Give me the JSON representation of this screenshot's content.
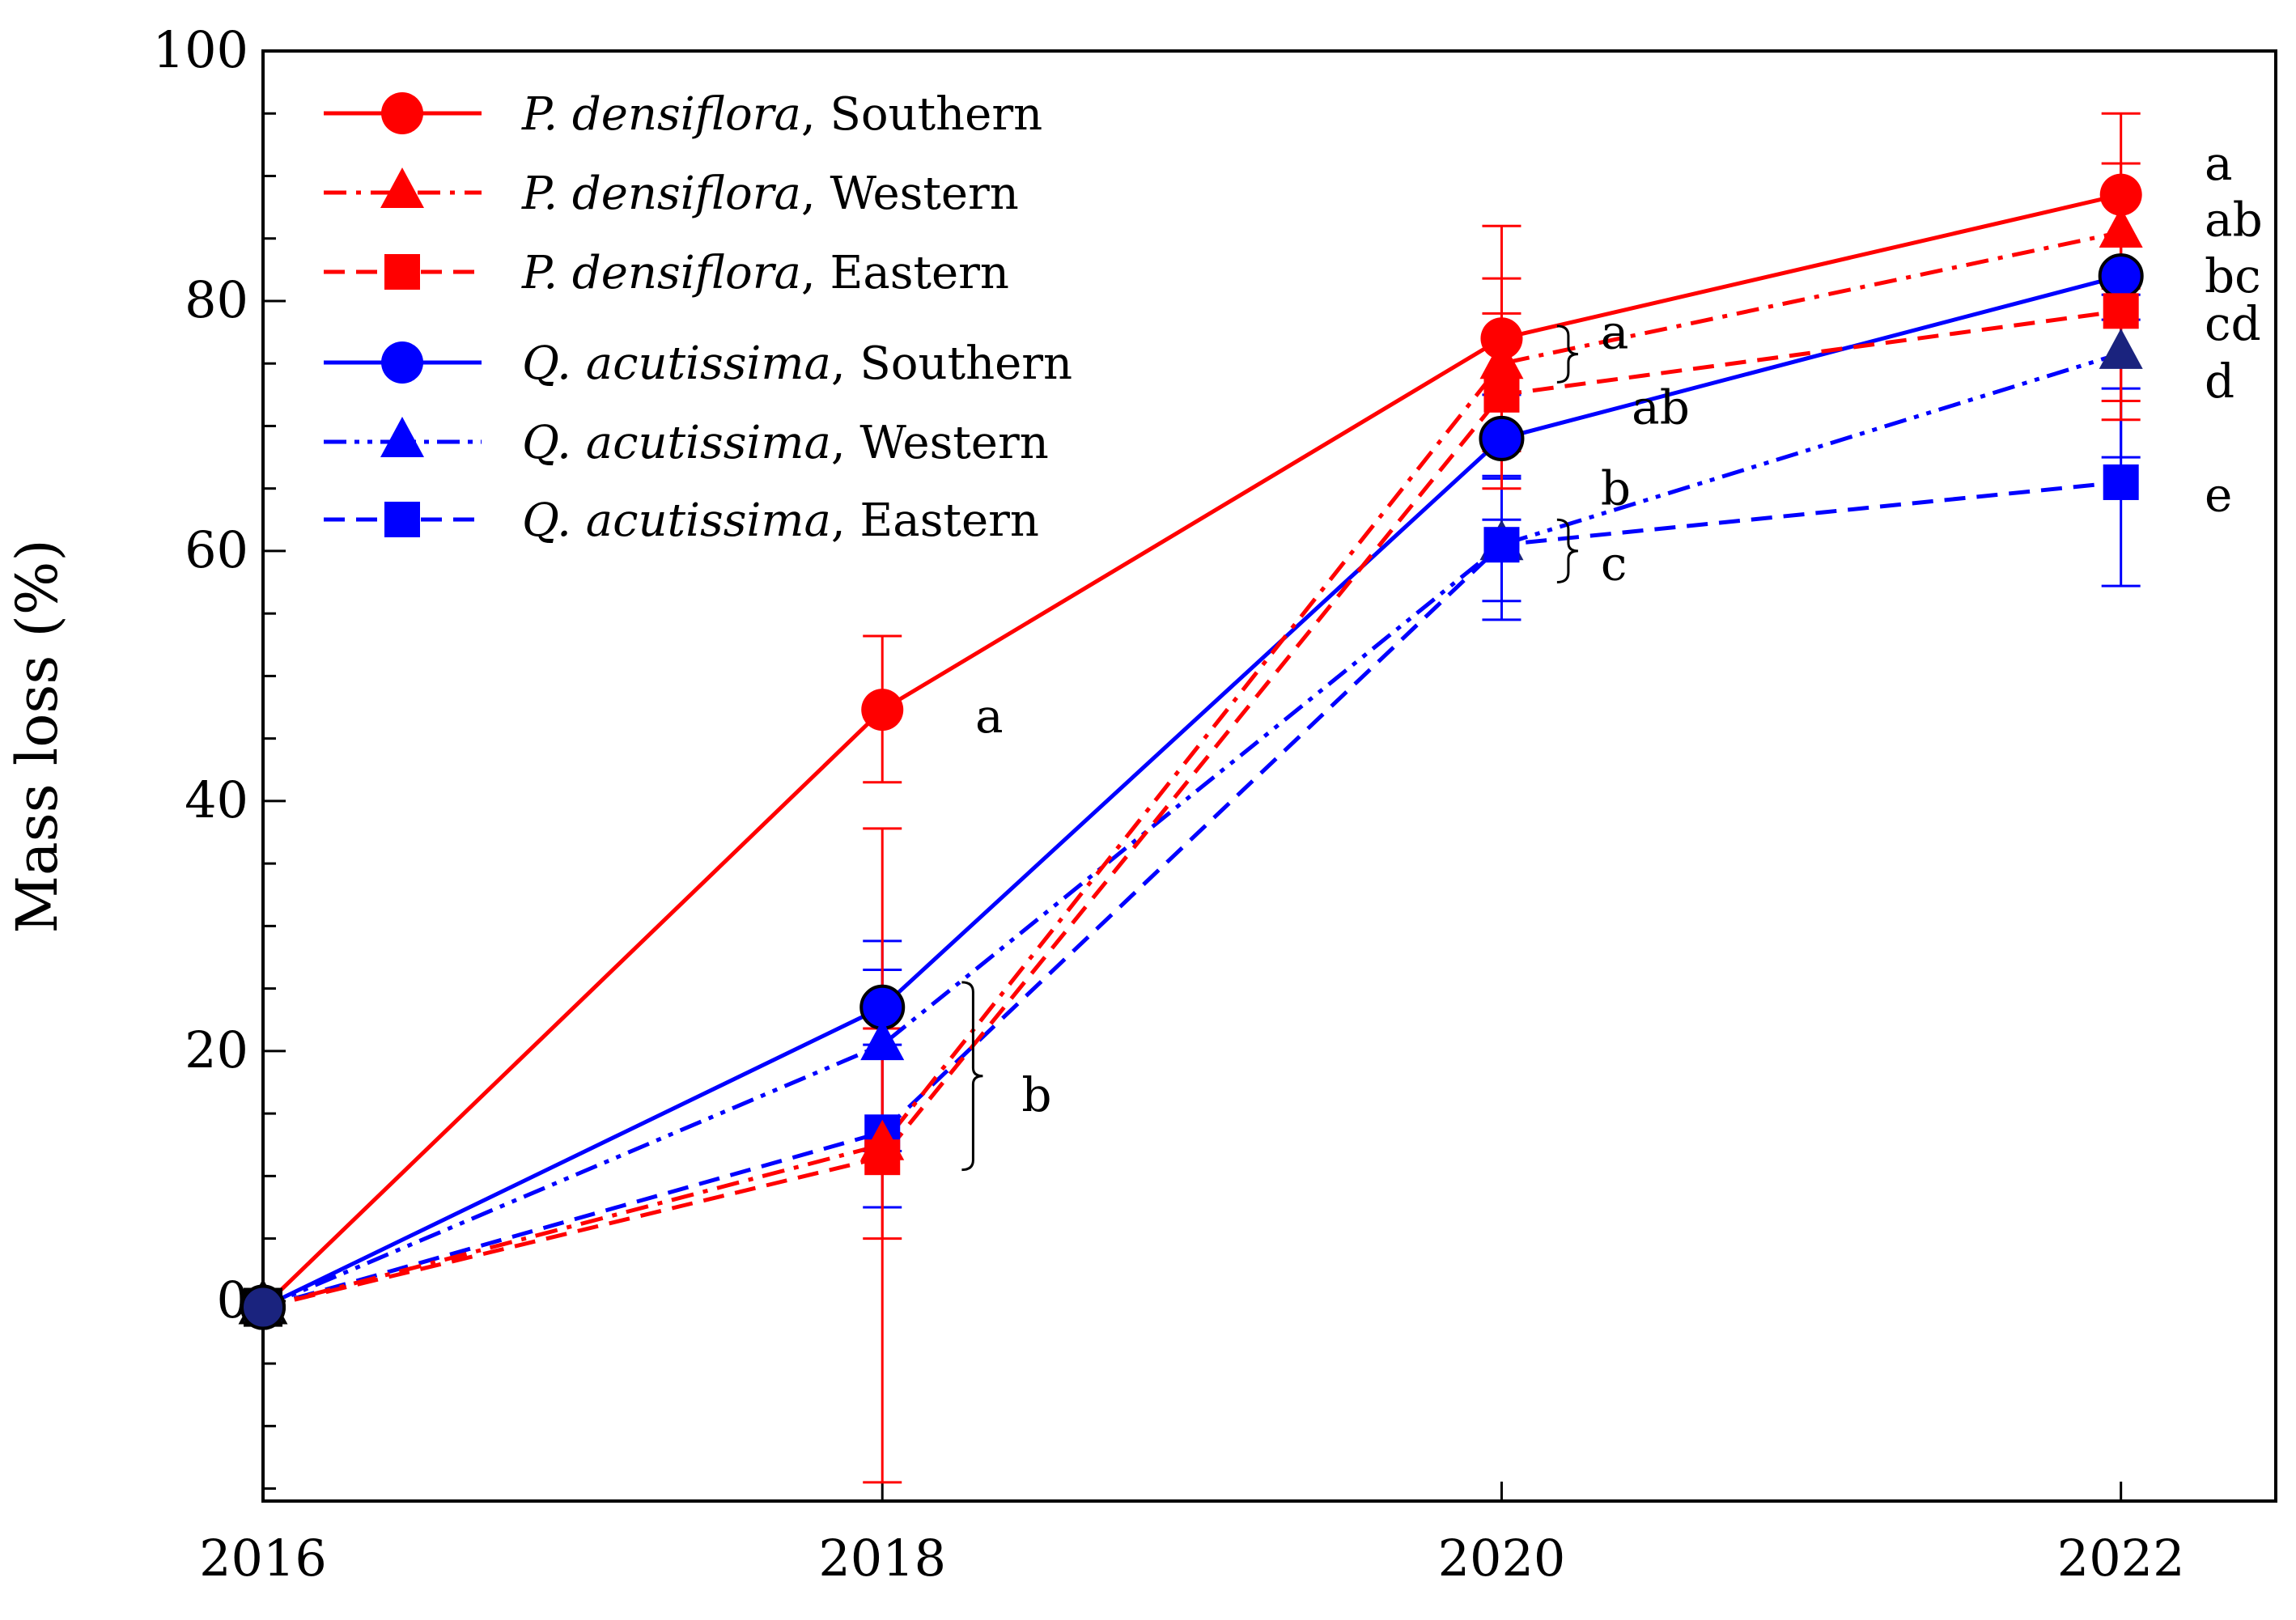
{
  "chart_data": {
    "type": "line",
    "title": "",
    "xlabel": "",
    "ylabel": "Mass loss (%)",
    "x": [
      2016,
      2018,
      2020,
      2022
    ],
    "xlim": [
      2016,
      2022.5
    ],
    "ylim": [
      -16,
      100
    ],
    "x_ticks": [
      "2016",
      "2018",
      "2020",
      "2022"
    ],
    "y_ticks": [
      "0",
      "20",
      "40",
      "60",
      "80",
      "100"
    ],
    "legend_position": "top-left",
    "series": [
      {
        "name": "P. densiflora, Southern",
        "species": "P. densiflora",
        "site": ", Southern",
        "color": "#ff0000",
        "marker": "circle",
        "line": "solid",
        "values": [
          -0.5,
          47.3,
          77.0,
          88.5
        ],
        "error_low": [
          null,
          41.5,
          68.0,
          81.0
        ],
        "error_high": [
          null,
          53.2,
          86.0,
          95.0
        ]
      },
      {
        "name": "P. densiflora, Western",
        "species": "P. densiflora",
        "site": ", Western",
        "color": "#ff0000",
        "marker": "triangle",
        "line": "dash-dot",
        "values": [
          -0.5,
          12.5,
          75.0,
          85.5
        ],
        "error_low": [
          null,
          -14.5,
          65.0,
          70.5
        ],
        "error_high": [
          null,
          37.8,
          79.0,
          91.0
        ]
      },
      {
        "name": "P. densiflora, Eastern",
        "species": "P. densiflora",
        "site": ", Eastern",
        "color": "#ff0000",
        "marker": "square",
        "line": "dashed",
        "values": [
          -0.5,
          11.5,
          72.5,
          79.2
        ],
        "error_low": [
          null,
          5.0,
          69.5,
          72.0
        ],
        "error_high": [
          null,
          21.8,
          81.8,
          88.0
        ]
      },
      {
        "name": "Q. acutissima, Southern",
        "species": "Q. acutissima",
        "site": ", Southern",
        "color": "#0000ff",
        "marker": "circle",
        "line": "solid",
        "values": [
          -0.5,
          23.5,
          69.0,
          82.0
        ],
        "error_low": [
          null,
          20.5,
          65.8,
          78.5
        ],
        "error_high": [
          null,
          26.5,
          72.5,
          84.5
        ]
      },
      {
        "name": "Q. acutissima, Western",
        "species": "Q. acutissima",
        "site": ", Western",
        "color": "#0000ff",
        "marker": "triangle",
        "line": "dash-dot-dot",
        "values": [
          -0.5,
          20.5,
          60.5,
          75.8
        ],
        "error_low": [
          null,
          12.0,
          56.0,
          67.5
        ],
        "error_high": [
          null,
          28.8,
          66.0,
          80.5
        ]
      },
      {
        "name": "Q. acutissima, Eastern",
        "species": "Q. acutissima",
        "site": ", Eastern",
        "color": "#0000ff",
        "marker": "square",
        "line": "dashed",
        "values": [
          -0.5,
          13.5,
          60.5,
          65.5
        ],
        "error_low": [
          null,
          7.5,
          54.5,
          57.2
        ],
        "error_high": [
          null,
          19.5,
          62.5,
          73.0
        ]
      }
    ],
    "annotations": [
      {
        "text": "a",
        "x": 2018.3,
        "y": 46.8
      },
      {
        "text": "b",
        "x": 2018.45,
        "y": 16.5,
        "brace": [
          10.5,
          25.5
        ]
      },
      {
        "text": "a",
        "x": 2020.32,
        "y": 77.5,
        "brace": [
          73.5,
          78.0
        ]
      },
      {
        "text": "ab",
        "x": 2020.42,
        "y": 71.5
      },
      {
        "text": "b",
        "x": 2020.32,
        "y": 65.0
      },
      {
        "text": "c",
        "x": 2020.32,
        "y": 59.0,
        "brace": [
          57.5,
          62.5
        ]
      },
      {
        "text": "a",
        "x": 2022.27,
        "y": 91.0
      },
      {
        "text": "ab",
        "x": 2022.27,
        "y": 86.5
      },
      {
        "text": "bc",
        "x": 2022.27,
        "y": 82.0
      },
      {
        "text": "cd",
        "x": 2022.27,
        "y": 78.2
      },
      {
        "text": "d",
        "x": 2022.27,
        "y": 73.6
      },
      {
        "text": "e",
        "x": 2022.27,
        "y": 64.5
      }
    ]
  }
}
